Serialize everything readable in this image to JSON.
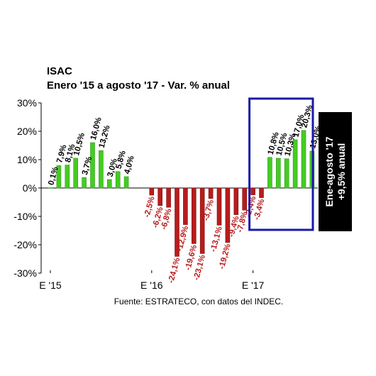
{
  "title": "ISAC",
  "subtitle": "Enero '15 a agosto '17 - Var. % anual",
  "source": "Fuente: ESTRATECO, con datos del INDEC.",
  "annotation": {
    "line1": "Ene-agosto '17",
    "line2": "+9,5% anual"
  },
  "colors": {
    "positive": "#44cc22",
    "negative": "#b81c1c",
    "highlight_box": "#1a1aa8",
    "annotation_bg": "#000000"
  },
  "chart_data": {
    "type": "bar",
    "title": "ISAC",
    "subtitle": "Enero '15 a agosto '17 - Var. % anual",
    "ylim": [
      -30,
      30
    ],
    "y_ticks": [
      "30%",
      "20%",
      "10%",
      "0%",
      "-10%",
      "-20%",
      "-30%"
    ],
    "y_tick_values": [
      30,
      20,
      10,
      0,
      -10,
      -20,
      -30
    ],
    "x_tick_labels": [
      {
        "label": "E '15",
        "index": 0
      },
      {
        "label": "E '16",
        "index": 12
      },
      {
        "label": "E '17",
        "index": 24
      }
    ],
    "grid": false,
    "values": [
      0.1,
      7.9,
      8.1,
      10.5,
      3.7,
      16.0,
      13.2,
      3.0,
      5.8,
      4.0,
      0,
      0,
      -2.5,
      -6.2,
      -6.8,
      -24.1,
      -12.9,
      -19.6,
      -23.1,
      -3.7,
      -13.1,
      -19.2,
      -9.4,
      -7.8,
      -2.4,
      -3.4,
      10.8,
      10.5,
      10.3,
      17.0,
      20.3,
      13.0
    ],
    "data_labels": [
      "0,1%",
      "7,9%",
      "8,1%",
      "10,5%",
      "3,7%",
      "16,0%",
      "13,2%",
      "3,0%",
      "5,8%",
      "4,0%",
      "",
      "",
      "-2,5%",
      "-6,2%",
      "-6,8%",
      "-24,1%",
      "-12,9%",
      "-19,6%",
      "-23,1%",
      "-3,7%",
      "-13,1%",
      "-19,2%",
      "-9,4%",
      "-7,8%",
      "-2,4%",
      "-3,4%",
      "10,8%",
      "10,5%",
      "10,3%",
      "17,0%",
      "20,3%",
      "13,0%"
    ],
    "highlight": {
      "from_index": 24,
      "to_index": 31
    }
  }
}
